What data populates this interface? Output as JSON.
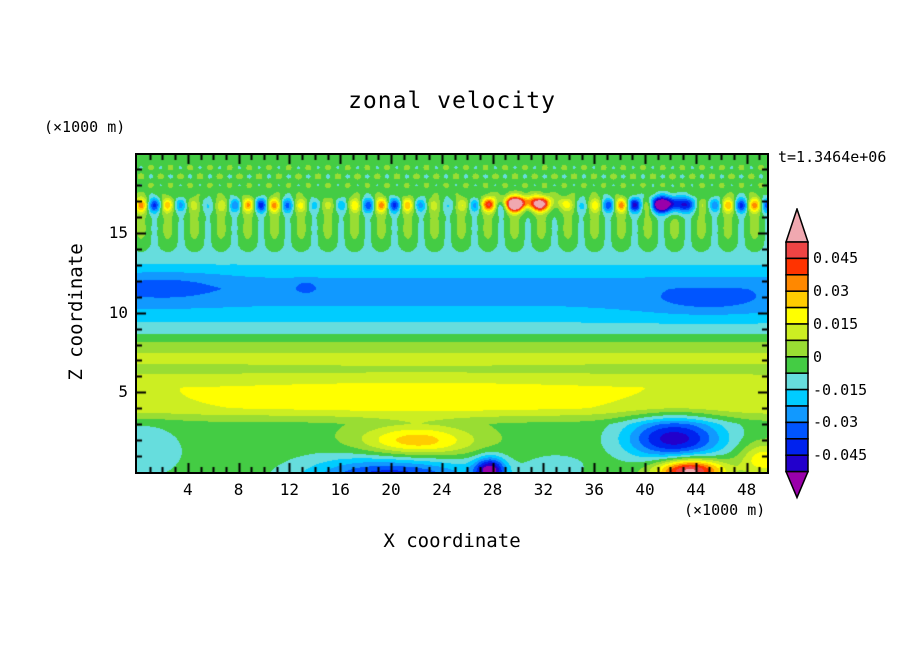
{
  "chart_data": {
    "type": "heatmap",
    "title": "zonal velocity",
    "xlabel": "X coordinate",
    "ylabel": "Z coordinate",
    "x_units_label": "(×1000 m)",
    "y_units_label": "(×1000 m)",
    "time_label": "t=1.3464e+06",
    "xlim": [
      0,
      49.6
    ],
    "ylim": [
      0,
      19.9
    ],
    "xticks": [
      4,
      8,
      12,
      16,
      20,
      24,
      28,
      32,
      36,
      40,
      44,
      48
    ],
    "xminor_step": 1,
    "yticks": [
      5,
      10,
      15
    ],
    "yminor_step": 1,
    "grid": false,
    "legend_position": "right-colorbar",
    "levels": {
      "min": -0.0525,
      "step": 0.0075,
      "count": 14
    },
    "colorbar_labels": [
      "0.045",
      "0.03",
      "0.015",
      "0",
      "-0.015",
      "-0.03",
      "-0.045"
    ],
    "palette": {
      "under": "#9900aa",
      "colors": [
        "#2200cc",
        "#0022ee",
        "#0055ff",
        "#1199ff",
        "#00ccff",
        "#66dddd",
        "#44cc44",
        "#99dd33",
        "#ccee22",
        "#ffff00",
        "#ffcc00",
        "#ff8800",
        "#ff3300",
        "#ee4444"
      ],
      "over": "#f0a8b0"
    },
    "field": {
      "band_profile": [
        [
          0,
          -0.003
        ],
        [
          3,
          -0.003
        ],
        [
          4,
          0.013
        ],
        [
          5.3,
          0.014
        ],
        [
          6.3,
          0.006
        ],
        [
          7.3,
          0.009
        ],
        [
          8.1,
          0.001
        ],
        [
          9,
          -0.012
        ],
        [
          10.3,
          -0.022
        ],
        [
          11.5,
          -0.027
        ],
        [
          12.4,
          -0.021
        ],
        [
          13.2,
          -0.013
        ],
        [
          14.2,
          -0.006
        ],
        [
          15,
          -0.003
        ],
        [
          19.9,
          -0.003
        ]
      ],
      "blobs": [
        {
          "x": 22,
          "z": 4.6,
          "sx": 15,
          "sz": 1.25,
          "a": 0.0065
        },
        {
          "x": 0.5,
          "z": 1.3,
          "sx": 3.2,
          "sz": 1.7,
          "a": -0.011
        },
        {
          "x": 20,
          "z": -0.5,
          "sx": 6.5,
          "sz": 1.5,
          "a": -0.042
        },
        {
          "x": 27.8,
          "z": 0.1,
          "sx": 1.2,
          "sz": 0.8,
          "a": -0.05
        },
        {
          "x": 22,
          "z": 1.9,
          "sx": 4.5,
          "sz": 1.0,
          "a": 0.032
        },
        {
          "x": 33,
          "z": 0.3,
          "sx": 2.3,
          "sz": 0.8,
          "a": -0.01
        },
        {
          "x": 42.3,
          "z": 2.1,
          "sx": 3.8,
          "sz": 1.35,
          "a": -0.046
        },
        {
          "x": 43.5,
          "z": 0.1,
          "sx": 2.6,
          "sz": 0.75,
          "a": 0.062
        },
        {
          "x": 49.3,
          "z": 0.8,
          "sx": 1.8,
          "sz": 1.0,
          "a": 0.024
        },
        {
          "x": 2,
          "z": 11.6,
          "sx": 4.5,
          "sz": 0.9,
          "a": -0.009
        },
        {
          "x": 45,
          "z": 10.7,
          "sx": 5.5,
          "sz": 0.9,
          "a": -0.009
        },
        {
          "x": 13.3,
          "z": 11.6,
          "sx": 0.8,
          "sz": 0.4,
          "a": -0.009
        },
        {
          "x": 30.5,
          "z": 16.85,
          "sx": 2.4,
          "sz": 0.45,
          "a": 0.065
        },
        {
          "x": 41.8,
          "z": 16.8,
          "sx": 1.8,
          "sz": 0.5,
          "a": -0.06
        }
      ],
      "stripe": {
        "zc": 16.75,
        "sz": 0.45,
        "amp": 0.038,
        "wl": 2.1,
        "ph": 0.6,
        "mod_base": 0.65,
        "mod_amp": 0.35,
        "mod_wl": 9.5,
        "mod_ph": 1.2
      },
      "fingers": {
        "zc": 15.3,
        "sz": 1.2,
        "amp": 0.006,
        "wl": 2.1,
        "ph": 0.6
      },
      "checker": {
        "zc": 18.6,
        "sz": 1.3,
        "amp": 0.006,
        "wlx": 1.55,
        "phx": 0.3,
        "wlz": 1.15,
        "z0": 17.4
      }
    }
  }
}
